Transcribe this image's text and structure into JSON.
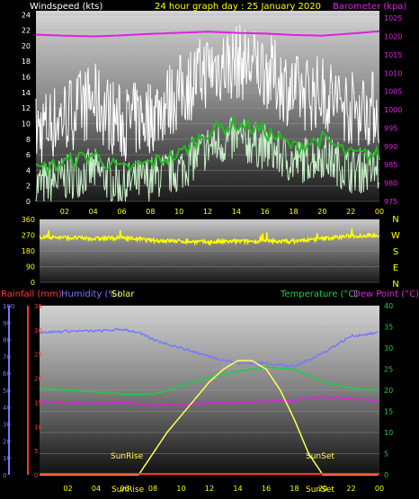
{
  "header": {
    "wind_title": "Windspeed (kts)",
    "graph_title": "24 hour graph day : 25 January 2020",
    "baro_title": "Barometer (kpa)"
  },
  "bottom_header": {
    "rainfall": "Rainfall (mm)",
    "humidity": "Humidity (%)",
    "solar": "Solar",
    "temperature": "Temperature (°C)",
    "dewpoint": "Dew Point (°C)"
  },
  "annotations": {
    "sunrise": "SunRise",
    "sunset": "SunSet",
    "sunrise_time": "SunRise",
    "sunset_time": "SunSet"
  },
  "colors": {
    "wind_gust": "#ffffff",
    "wind_avg": "#22bb22",
    "wind_light": "#c8f0c8",
    "barometer": "#dd22dd",
    "direction": "#ffff00",
    "humidity": "#7777ff",
    "temperature": "#22cc44",
    "dewpoint": "#dd22dd",
    "solar": "#ffff55",
    "rainfall": "#ff3333",
    "axis_text": "#ffff00"
  },
  "chart_data": [
    {
      "type": "line",
      "id": "wind_baro",
      "xlabel_ticks": [
        "02",
        "04",
        "06",
        "08",
        "10",
        "12",
        "14",
        "16",
        "18",
        "20",
        "22",
        "00"
      ],
      "y_ticks": [
        "0",
        "2",
        "4",
        "6",
        "8",
        "10",
        "12",
        "14",
        "16",
        "18",
        "20",
        "22",
        "24"
      ],
      "y2_ticks": [
        "975",
        "980",
        "985",
        "990",
        "995",
        "1000",
        "1005",
        "1010",
        "1015",
        "1020",
        "1025"
      ],
      "ylim": [
        0,
        24.5
      ],
      "y2lim": [
        975,
        1027
      ],
      "series": [
        {
          "hours": [
            0,
            2,
            4,
            6,
            8,
            10,
            12,
            14,
            16,
            18,
            20,
            22,
            24
          ],
          "values": [
            4,
            5,
            6,
            4,
            5,
            6,
            9,
            10,
            9,
            7,
            8,
            6,
            6
          ]
        },
        {
          "hours": [
            0,
            2,
            4,
            6,
            8,
            10,
            12,
            14,
            16,
            18,
            20,
            22,
            24
          ],
          "values": [
            9,
            11,
            13,
            10,
            11,
            14,
            17,
            18,
            17,
            14,
            14,
            12,
            12
          ]
        },
        {
          "hours": [
            0,
            2,
            4,
            6,
            8,
            10,
            12,
            14,
            16,
            18,
            20,
            22,
            24
          ],
          "values": [
            1020.5,
            1020.2,
            1020.0,
            1020.3,
            1020.7,
            1021.0,
            1021.3,
            1021.0,
            1020.8,
            1020.4,
            1020.2,
            1020.8,
            1021.4
          ]
        }
      ]
    },
    {
      "type": "line",
      "id": "wind_direction",
      "y_ticks": [
        "0",
        "90",
        "180",
        "270",
        "360"
      ],
      "compass": [
        "N",
        "W",
        "S",
        "E",
        "N"
      ],
      "ylim": [
        0,
        360
      ],
      "series": [
        {
          "hours": [
            0,
            2,
            4,
            6,
            8,
            10,
            12,
            14,
            16,
            18,
            20,
            22,
            24
          ],
          "values": [
            260,
            255,
            250,
            255,
            240,
            235,
            230,
            235,
            235,
            235,
            250,
            265,
            270
          ]
        }
      ]
    },
    {
      "type": "line",
      "id": "temp_hum_solar",
      "xlabel_ticks": [
        "02",
        "04",
        "06",
        "08",
        "10",
        "12",
        "14",
        "16",
        "18",
        "20",
        "22",
        "00"
      ],
      "y_left_ticks": [
        "0",
        "5",
        "10",
        "15",
        "20",
        "25",
        "30",
        "35"
      ],
      "y_left_outer_ticks": [
        "0",
        "10",
        "20",
        "30",
        "40",
        "50",
        "60",
        "70",
        "80",
        "90",
        "100"
      ],
      "y_right_ticks": [
        "0",
        "5",
        "10",
        "15",
        "20",
        "25",
        "30",
        "35",
        "40"
      ],
      "rain_ylim": [
        0,
        35
      ],
      "humidity_ylim": [
        0,
        100
      ],
      "temp_ylim": [
        0,
        40
      ],
      "series": [
        {
          "hours": [
            0,
            2,
            4,
            6,
            7,
            8,
            10,
            12,
            14,
            16,
            18,
            20,
            22,
            24
          ],
          "values": [
            84,
            85,
            85,
            86,
            84,
            80,
            75,
            70,
            66,
            66,
            64,
            72,
            82,
            84
          ]
        },
        {
          "hours": [
            0,
            2,
            4,
            6,
            8,
            10,
            12,
            14,
            16,
            18,
            20,
            22,
            24
          ],
          "values": [
            20.5,
            20,
            19.5,
            19,
            19,
            21,
            23,
            24.5,
            25.5,
            25,
            22,
            20.5,
            20
          ]
        },
        {
          "hours": [
            0,
            2,
            4,
            6,
            8,
            10,
            12,
            14,
            16,
            18,
            20,
            22,
            24
          ],
          "values": [
            17.5,
            17,
            17,
            17,
            16.5,
            16.5,
            17,
            17,
            17.5,
            17.5,
            18.5,
            18,
            17.5
          ]
        },
        {
          "hours": [
            0,
            2,
            4,
            6,
            7,
            8,
            9,
            10,
            11,
            12,
            13,
            14,
            15,
            16,
            17,
            18,
            19,
            20,
            21,
            22,
            24
          ],
          "values": [
            0,
            0,
            0,
            0,
            0,
            5,
            10,
            14,
            18,
            22,
            25,
            27,
            27,
            25,
            20,
            13,
            5,
            0,
            0,
            0,
            0
          ]
        },
        {
          "hours": [
            0,
            24
          ],
          "values": [
            0,
            0
          ]
        }
      ]
    }
  ]
}
